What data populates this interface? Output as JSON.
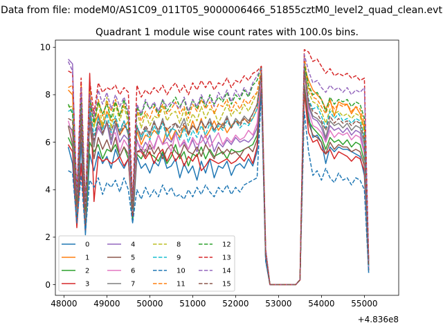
{
  "figure": {
    "suptitle": "Data from file: modeM0/AS1C09_011T05_9000006466_51855cztM0_level2_quad_clean.evt",
    "title": "Quadrant 1 module wise count rates with 100.0s bins."
  },
  "chart_data": {
    "type": "line",
    "title": "Quadrant 1 module wise count rates with 100.0s bins.",
    "x_offset_label": "+4.836e8",
    "xlim": [
      47800,
      55800
    ],
    "ylim": [
      -0.45,
      10.3
    ],
    "xticks": [
      48000,
      49000,
      50000,
      51000,
      52000,
      53000,
      54000,
      55000
    ],
    "xtick_labels": [
      "48000",
      "49000",
      "50000",
      "51000",
      "52000",
      "53000",
      "54000",
      "55000"
    ],
    "yticks": [
      0,
      2,
      4,
      6,
      8,
      10
    ],
    "ytick_labels": [
      "0",
      "2",
      "4",
      "6",
      "8",
      "10"
    ],
    "grid": false,
    "legend": {
      "placement": "lower-left",
      "ncol": 4
    },
    "x_start": 48100,
    "x_step": 100,
    "series": [
      {
        "name": "0",
        "color": "#1f77b4",
        "dash": false,
        "values": [
          5.8,
          5.1,
          2.5,
          6.0,
          2.1,
          5.5,
          4.8,
          5.6,
          5.1,
          5.4,
          4.9,
          5.7,
          5.2,
          4.9,
          5.3,
          2.6,
          5.4,
          4.9,
          5.1,
          4.7,
          5.2,
          5.0,
          5.5,
          4.9,
          5.0,
          5.3,
          4.5,
          5.1,
          4.7,
          5.0,
          4.4,
          5.2,
          4.7,
          5.3,
          4.5,
          5.0,
          4.9,
          5.2,
          4.6,
          5.0,
          5.1,
          4.9,
          5.3,
          5.0,
          5.6,
          8.2,
          1.0,
          0.0,
          0.0,
          0.0,
          0.0,
          0.0,
          0.0,
          0.0,
          0.2,
          8.4,
          7.1,
          6.2,
          6.3,
          6.0,
          5.1,
          5.8,
          5.6,
          5.8,
          5.7,
          5.7,
          5.6,
          5.5,
          5.4,
          4.6,
          0.5
        ]
      },
      {
        "name": "1",
        "color": "#ff7f0e",
        "dash": false,
        "values": [
          8.2,
          8.0,
          3.2,
          7.1,
          3.0,
          7.0,
          6.7,
          7.2,
          6.6,
          7.3,
          6.9,
          7.0,
          6.3,
          6.6,
          6.9,
          3.0,
          6.5,
          5.9,
          6.3,
          6.2,
          6.5,
          6.3,
          5.9,
          6.6,
          6.1,
          6.5,
          6.2,
          6.7,
          6.3,
          6.9,
          6.4,
          7.0,
          6.2,
          6.5,
          6.9,
          6.5,
          6.8,
          6.4,
          6.7,
          6.9,
          6.8,
          7.0,
          6.8,
          7.0,
          7.4,
          8.6,
          1.2,
          0.0,
          0.0,
          0.0,
          0.0,
          0.0,
          0.0,
          0.0,
          0.2,
          9.2,
          8.6,
          8.2,
          8.0,
          7.8,
          7.4,
          7.8,
          7.1,
          7.7,
          7.6,
          7.6,
          7.2,
          7.5,
          7.2,
          6.6,
          0.8
        ]
      },
      {
        "name": "2",
        "color": "#2ca02c",
        "dash": false,
        "values": [
          6.2,
          5.8,
          2.8,
          6.8,
          2.4,
          6.0,
          5.6,
          5.9,
          5.3,
          5.7,
          5.6,
          5.9,
          5.4,
          5.8,
          5.3,
          2.8,
          5.5,
          5.3,
          5.7,
          5.5,
          5.4,
          5.2,
          5.6,
          5.1,
          5.4,
          5.9,
          5.3,
          5.6,
          5.0,
          5.5,
          5.4,
          5.8,
          5.3,
          5.7,
          5.4,
          5.5,
          5.6,
          5.3,
          5.7,
          5.6,
          5.6,
          5.7,
          5.8,
          5.9,
          6.3,
          8.6,
          1.1,
          0.0,
          0.0,
          0.0,
          0.0,
          0.0,
          0.0,
          0.0,
          0.2,
          8.4,
          6.9,
          6.6,
          6.4,
          6.2,
          5.7,
          6.2,
          6.0,
          6.1,
          5.9,
          6.1,
          5.8,
          6.0,
          5.9,
          5.2,
          0.6
        ]
      },
      {
        "name": "3",
        "color": "#d62728",
        "dash": false,
        "values": [
          5.9,
          5.6,
          2.4,
          5.1,
          2.3,
          8.9,
          3.5,
          5.4,
          5.2,
          5.3,
          5.1,
          5.2,
          5.4,
          5.0,
          5.3,
          2.9,
          5.6,
          5.6,
          5.3,
          5.6,
          5.1,
          5.5,
          5.7,
          5.2,
          5.6,
          5.2,
          5.5,
          5.0,
          5.4,
          5.2,
          5.5,
          4.8,
          5.0,
          5.3,
          5.2,
          5.1,
          5.2,
          5.3,
          5.1,
          5.2,
          5.4,
          5.2,
          5.5,
          5.1,
          5.8,
          8.7,
          1.1,
          0.0,
          0.0,
          0.0,
          0.0,
          0.0,
          0.0,
          0.0,
          0.2,
          8.1,
          6.4,
          6.0,
          6.1,
          5.7,
          5.5,
          5.7,
          5.3,
          5.6,
          5.5,
          5.4,
          5.2,
          5.4,
          5.3,
          4.8,
          0.6
        ]
      },
      {
        "name": "4",
        "color": "#9467bd",
        "dash": false,
        "values": [
          9.5,
          9.3,
          3.0,
          7.6,
          2.9,
          7.3,
          6.0,
          6.6,
          6.3,
          6.8,
          5.9,
          6.7,
          6.0,
          6.3,
          6.1,
          3.1,
          6.1,
          5.6,
          6.0,
          5.7,
          5.8,
          6.3,
          5.9,
          6.2,
          6.0,
          6.4,
          5.8,
          6.0,
          5.7,
          6.1,
          5.6,
          6.3,
          5.9,
          6.3,
          5.6,
          6.0,
          5.8,
          6.1,
          5.9,
          6.2,
          6.0,
          6.1,
          6.0,
          6.2,
          6.6,
          8.8,
          1.2,
          0.0,
          0.0,
          0.0,
          0.0,
          0.0,
          0.0,
          0.0,
          0.2,
          9.5,
          7.5,
          7.0,
          6.9,
          6.6,
          6.1,
          6.7,
          6.5,
          6.6,
          6.4,
          6.6,
          6.3,
          6.5,
          6.4,
          5.6,
          0.7
        ]
      },
      {
        "name": "5",
        "color": "#8c564b",
        "dash": false,
        "values": [
          6.7,
          5.9,
          3.0,
          6.6,
          2.5,
          6.8,
          5.3,
          6.2,
          5.7,
          6.1,
          5.6,
          6.2,
          5.4,
          5.8,
          5.5,
          3.0,
          5.6,
          5.7,
          5.4,
          5.9,
          5.5,
          5.8,
          5.3,
          5.7,
          5.9,
          5.6,
          5.4,
          5.9,
          5.6,
          5.5,
          5.8,
          5.4,
          5.9,
          5.6,
          5.3,
          5.8,
          5.5,
          5.7,
          5.5,
          5.6,
          5.4,
          5.7,
          5.8,
          5.6,
          6.1,
          8.5,
          1.1,
          0.0,
          0.0,
          0.0,
          0.0,
          0.0,
          0.0,
          0.0,
          0.2,
          8.3,
          6.8,
          6.3,
          6.2,
          6.0,
          5.5,
          6.0,
          5.7,
          5.9,
          5.8,
          5.8,
          5.6,
          5.7,
          5.6,
          5.0,
          0.6
        ]
      },
      {
        "name": "6",
        "color": "#e377c2",
        "dash": false,
        "values": [
          6.9,
          6.3,
          3.1,
          7.3,
          2.9,
          6.9,
          5.9,
          6.7,
          6.4,
          6.8,
          6.3,
          6.4,
          5.6,
          6.1,
          5.8,
          3.1,
          6.0,
          5.8,
          5.6,
          6.1,
          5.7,
          6.3,
          5.9,
          6.0,
          5.6,
          6.4,
          5.8,
          6.1,
          5.7,
          6.2,
          5.9,
          6.0,
          6.3,
          5.8,
          6.1,
          6.4,
          5.9,
          6.2,
          6.0,
          6.3,
          6.1,
          6.2,
          6.5,
          6.3,
          6.8,
          8.8,
          1.2,
          0.0,
          0.0,
          0.0,
          0.0,
          0.0,
          0.0,
          0.0,
          0.2,
          8.9,
          7.3,
          6.7,
          6.6,
          6.4,
          6.0,
          6.5,
          6.2,
          6.4,
          6.3,
          6.4,
          6.1,
          6.3,
          6.2,
          5.5,
          0.7
        ]
      },
      {
        "name": "7",
        "color": "#7f7f7f",
        "dash": false,
        "values": [
          6.7,
          6.5,
          3.0,
          7.5,
          2.8,
          7.2,
          5.8,
          7.1,
          6.3,
          6.9,
          6.1,
          6.8,
          6.4,
          6.9,
          6.3,
          3.2,
          6.7,
          6.1,
          6.6,
          6.3,
          6.9,
          6.4,
          7.0,
          6.2,
          6.5,
          6.8,
          6.6,
          7.0,
          6.4,
          6.7,
          6.5,
          6.9,
          6.6,
          7.0,
          6.5,
          6.8,
          6.7,
          7.1,
          6.6,
          7.0,
          6.8,
          7.1,
          6.9,
          7.2,
          7.6,
          9.0,
          1.3,
          0.0,
          0.0,
          0.0,
          0.0,
          0.0,
          0.0,
          0.0,
          0.2,
          9.1,
          7.6,
          7.1,
          7.0,
          6.8,
          6.2,
          6.9,
          6.7,
          6.8,
          6.6,
          6.8,
          6.5,
          6.7,
          6.6,
          5.9,
          0.8
        ]
      },
      {
        "name": "8",
        "color": "#bcbd22",
        "dash": true,
        "values": [
          7.5,
          7.5,
          3.6,
          8.0,
          3.4,
          8.2,
          6.6,
          7.7,
          6.7,
          7.9,
          6.6,
          7.6,
          6.9,
          7.5,
          6.8,
          3.2,
          7.3,
          6.6,
          7.2,
          6.7,
          7.1,
          7.0,
          7.5,
          6.9,
          7.2,
          7.3,
          6.8,
          7.4,
          6.7,
          7.2,
          6.9,
          7.5,
          7.0,
          7.4,
          7.3,
          6.8,
          7.2,
          7.6,
          7.1,
          7.4,
          7.2,
          7.6,
          7.3,
          7.7,
          8.1,
          9.0,
          1.4,
          0.0,
          0.0,
          0.0,
          0.0,
          0.0,
          0.0,
          0.0,
          0.2,
          9.4,
          8.1,
          7.7,
          7.6,
          7.3,
          6.8,
          7.4,
          7.2,
          7.3,
          7.1,
          7.2,
          7.0,
          7.2,
          7.1,
          6.4,
          0.9
        ]
      },
      {
        "name": "9",
        "color": "#17becf",
        "dash": true,
        "values": [
          7.3,
          7.4,
          3.3,
          7.7,
          3.1,
          7.5,
          6.3,
          7.0,
          6.5,
          7.2,
          6.4,
          7.1,
          6.5,
          6.9,
          6.4,
          3.1,
          6.7,
          6.2,
          6.5,
          6.1,
          6.7,
          6.3,
          6.8,
          6.2,
          6.6,
          6.5,
          6.1,
          6.6,
          6.0,
          6.5,
          6.2,
          6.7,
          6.3,
          6.8,
          6.4,
          6.7,
          6.5,
          6.9,
          6.6,
          6.9,
          6.6,
          6.8,
          6.7,
          7.0,
          7.4,
          8.9,
          1.3,
          0.0,
          0.0,
          0.0,
          0.0,
          0.0,
          0.0,
          0.0,
          0.2,
          9.0,
          7.8,
          7.4,
          7.5,
          7.1,
          6.6,
          7.3,
          7.0,
          7.2,
          6.9,
          7.0,
          6.8,
          7.0,
          6.9,
          6.2,
          0.8
        ]
      },
      {
        "name": "10",
        "color": "#1f77b4",
        "dash": true,
        "values": [
          4.8,
          4.7,
          2.6,
          4.6,
          2.2,
          4.4,
          4.1,
          4.5,
          3.8,
          4.3,
          4.1,
          4.4,
          3.9,
          4.5,
          4.0,
          2.6,
          4.0,
          3.6,
          4.1,
          3.7,
          4.0,
          3.7,
          4.2,
          3.8,
          4.1,
          3.7,
          3.8,
          3.6,
          4.0,
          3.7,
          4.1,
          3.8,
          4.2,
          3.9,
          3.7,
          4.1,
          3.9,
          4.2,
          3.8,
          4.1,
          3.9,
          4.2,
          4.3,
          4.4,
          4.5,
          8.1,
          1.0,
          0.0,
          0.0,
          0.0,
          0.0,
          0.0,
          0.0,
          0.0,
          0.2,
          7.3,
          5.6,
          4.6,
          4.8,
          4.4,
          4.9,
          4.5,
          4.3,
          4.7,
          4.4,
          4.5,
          4.2,
          4.5,
          4.4,
          4.0,
          0.5
        ]
      },
      {
        "name": "11",
        "color": "#ff7f0e",
        "dash": true,
        "values": [
          8.3,
          8.4,
          3.3,
          8.5,
          3.1,
          8.1,
          6.9,
          7.8,
          7.1,
          7.7,
          7.3,
          7.8,
          7.1,
          7.6,
          7.2,
          3.3,
          7.4,
          6.9,
          7.3,
          7.0,
          7.5,
          7.1,
          7.6,
          7.2,
          7.4,
          7.7,
          7.2,
          7.5,
          7.0,
          7.6,
          7.3,
          7.8,
          7.4,
          7.7,
          7.2,
          7.6,
          7.5,
          7.8,
          7.3,
          7.7,
          7.4,
          7.8,
          7.6,
          7.9,
          8.1,
          9.1,
          1.4,
          0.0,
          0.0,
          0.0,
          0.0,
          0.0,
          0.0,
          0.0,
          0.2,
          9.6,
          8.3,
          7.9,
          7.8,
          7.5,
          7.2,
          7.7,
          7.4,
          7.6,
          7.5,
          7.6,
          7.3,
          7.5,
          7.4,
          6.8,
          1.0
        ]
      },
      {
        "name": "12",
        "color": "#2ca02c",
        "dash": true,
        "values": [
          7.6,
          7.2,
          3.4,
          7.9,
          3.2,
          7.8,
          6.8,
          7.7,
          7.2,
          7.6,
          7.0,
          7.7,
          7.1,
          7.8,
          7.0,
          3.4,
          7.5,
          7.1,
          7.7,
          7.4,
          7.6,
          7.2,
          7.8,
          7.3,
          7.6,
          7.9,
          7.5,
          7.8,
          7.2,
          7.8,
          7.4,
          7.9,
          7.5,
          8.0,
          7.6,
          7.9,
          7.7,
          8.1,
          7.6,
          8.0,
          7.8,
          8.2,
          7.9,
          8.4,
          8.6,
          9.2,
          1.4,
          0.0,
          0.0,
          0.0,
          0.0,
          0.0,
          0.0,
          0.0,
          0.2,
          9.3,
          8.4,
          8.0,
          8.1,
          7.8,
          7.3,
          7.9,
          7.6,
          7.8,
          7.7,
          7.8,
          7.5,
          7.7,
          7.6,
          7.0,
          1.0
        ]
      },
      {
        "name": "13",
        "color": "#d62728",
        "dash": true,
        "values": [
          9.0,
          8.9,
          3.8,
          8.7,
          3.4,
          8.6,
          7.2,
          8.5,
          8.1,
          8.3,
          8.2,
          8.4,
          8.0,
          8.3,
          8.1,
          3.5,
          8.4,
          7.9,
          8.2,
          8.0,
          8.3,
          8.1,
          8.4,
          8.0,
          8.3,
          8.5,
          8.1,
          8.4,
          8.0,
          8.5,
          8.2,
          8.6,
          8.3,
          8.6,
          8.2,
          8.5,
          8.4,
          8.7,
          8.3,
          8.6,
          8.5,
          8.8,
          8.6,
          8.9,
          9.0,
          9.2,
          1.5,
          0.0,
          0.0,
          0.0,
          0.0,
          0.0,
          0.0,
          0.0,
          0.2,
          9.9,
          9.8,
          9.4,
          9.5,
          9.2,
          8.9,
          9.1,
          8.8,
          8.9,
          8.8,
          8.9,
          8.7,
          8.8,
          8.6,
          8.7,
          1.1
        ]
      },
      {
        "name": "14",
        "color": "#9467bd",
        "dash": true,
        "values": [
          9.4,
          9.0,
          3.7,
          8.3,
          3.3,
          8.0,
          7.0,
          8.2,
          7.6,
          8.1,
          7.4,
          8.0,
          7.5,
          7.9,
          7.3,
          3.4,
          7.6,
          7.2,
          7.8,
          7.4,
          7.7,
          7.3,
          7.8,
          7.5,
          7.7,
          7.6,
          7.4,
          7.9,
          7.3,
          7.8,
          7.5,
          8.0,
          7.6,
          7.9,
          7.5,
          8.1,
          7.8,
          8.2,
          7.7,
          8.2,
          7.9,
          8.3,
          8.0,
          8.5,
          8.8,
          9.1,
          1.5,
          0.0,
          0.0,
          0.0,
          0.0,
          0.0,
          0.0,
          0.0,
          0.2,
          9.7,
          9.0,
          8.5,
          8.6,
          8.3,
          8.1,
          8.4,
          8.2,
          8.3,
          8.1,
          8.3,
          8.0,
          8.2,
          8.1,
          8.3,
          1.0
        ]
      },
      {
        "name": "15",
        "color": "#8c564b",
        "dash": true,
        "values": [
          7.0,
          6.9,
          3.3,
          7.2,
          3.1,
          7.0,
          6.1,
          6.9,
          6.4,
          6.8,
          6.5,
          6.9,
          6.3,
          6.7,
          6.5,
          3.2,
          6.6,
          6.3,
          6.7,
          6.4,
          6.8,
          6.5,
          6.9,
          6.5,
          6.7,
          6.8,
          6.4,
          6.8,
          6.3,
          6.7,
          6.5,
          6.9,
          6.6,
          6.9,
          6.5,
          6.8,
          6.6,
          7.0,
          6.6,
          6.9,
          6.7,
          7.0,
          6.8,
          7.2,
          7.6,
          8.9,
          1.3,
          0.0,
          0.0,
          0.0,
          0.0,
          0.0,
          0.0,
          0.0,
          0.2,
          9.0,
          7.7,
          7.3,
          7.2,
          6.9,
          6.5,
          7.1,
          6.8,
          7.0,
          6.8,
          6.9,
          6.7,
          6.9,
          6.8,
          6.1,
          0.8
        ]
      }
    ]
  }
}
